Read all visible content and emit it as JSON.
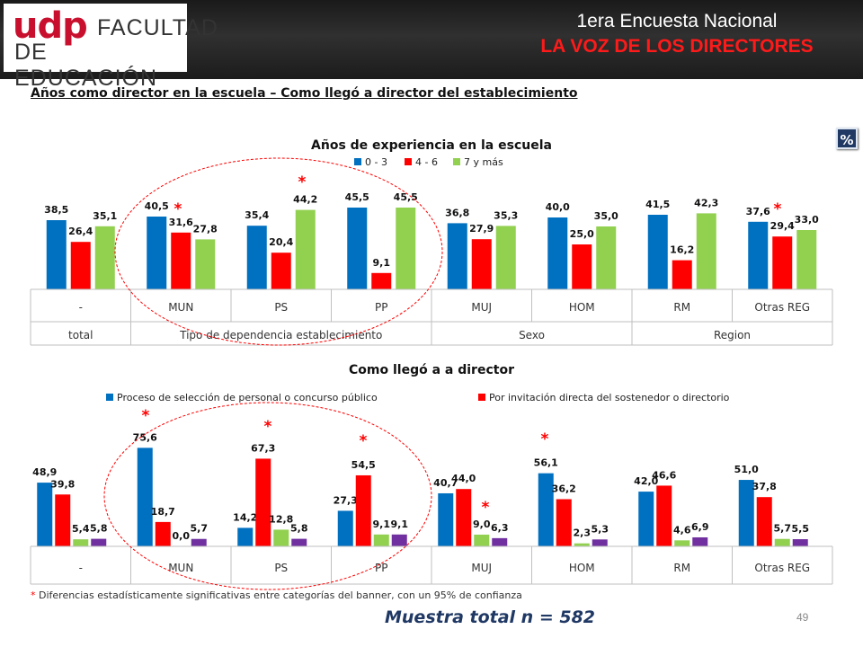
{
  "header": {
    "logo_udp": "udp",
    "logo_line1": "FACULTAD",
    "logo_line2": "DE EDUCACIÓN",
    "title": "1era Encuesta Nacional",
    "subtitle": "LA VOZ DE LOS DIRECTORES"
  },
  "slide_subtitle": "Años como director en la escuela – Como llegó a director del establecimiento",
  "percent_badge": "%",
  "colors": {
    "blue": "#0070c0",
    "red": "#ff0000",
    "green": "#92d050",
    "purple": "#7030a0",
    "star": "#ff0000",
    "ellipse": "#ff0000"
  },
  "chart_data": [
    {
      "type": "bar",
      "title": "Años de experiencia en la escuela",
      "categories": [
        "-",
        "MUN",
        "PS",
        "PP",
        "MUJ",
        "HOM",
        "RM",
        "Otras REG"
      ],
      "groups": [
        {
          "label": "total",
          "categories": [
            "-"
          ]
        },
        {
          "label": "Tipo de dependencia establecimiento",
          "categories": [
            "MUN",
            "PS",
            "PP"
          ]
        },
        {
          "label": "Sexo",
          "categories": [
            "MUJ",
            "HOM"
          ]
        },
        {
          "label": "Region",
          "categories": [
            "RM",
            "Otras REG"
          ]
        }
      ],
      "series": [
        {
          "name": "0 - 3",
          "color": "#0070c0",
          "values": [
            38.5,
            40.5,
            35.4,
            45.5,
            36.8,
            40.0,
            41.5,
            37.6
          ],
          "labels": [
            "38,5",
            "40,5",
            "35,4",
            "45,5",
            "36,8",
            "40,0",
            "41,5",
            "37,6"
          ]
        },
        {
          "name": "4 - 6",
          "color": "#ff0000",
          "values": [
            26.4,
            31.6,
            20.4,
            9.1,
            27.9,
            25.0,
            16.2,
            29.4
          ],
          "labels": [
            "26,4",
            "31,6",
            "20,4",
            "9,1",
            "27,9",
            "25,0",
            "16,2",
            "29,4"
          ]
        },
        {
          "name": "7 y más",
          "color": "#92d050",
          "values": [
            35.1,
            27.8,
            44.2,
            45.5,
            35.3,
            35.0,
            42.3,
            33.0
          ],
          "labels": [
            "35,1",
            "27,8",
            "44,2",
            "45,5",
            "35,3",
            "35,0",
            "42,3",
            "33,0"
          ]
        }
      ],
      "significance_markers": [
        {
          "category": "MUN",
          "text": "*"
        },
        {
          "category": "PS",
          "text": "*"
        },
        {
          "category": "Otras REG",
          "text": "*"
        }
      ],
      "legend": "top-center",
      "ylim": [
        0,
        50
      ]
    },
    {
      "type": "bar",
      "title": "Como llegó a a director",
      "categories": [
        "-",
        "MUN",
        "PS",
        "PP",
        "MUJ",
        "HOM",
        "RM",
        "Otras REG"
      ],
      "series": [
        {
          "name": "Proceso de selección de personal o concurso público",
          "color": "#0070c0",
          "values": [
            48.9,
            75.6,
            14.2,
            27.3,
            40.7,
            56.1,
            42.0,
            51.0
          ],
          "labels": [
            "48,9",
            "75,6",
            "14,2",
            "27,3",
            "40,7",
            "56,1",
            "42,0",
            "51,0"
          ]
        },
        {
          "name": "Por invitación directa del sostenedor o directorio",
          "color": "#ff0000",
          "values": [
            39.8,
            18.7,
            67.3,
            54.5,
            44.0,
            36.2,
            46.6,
            37.8
          ],
          "labels": [
            "39,8",
            "18,7",
            "67,3",
            "54,5",
            "44,0",
            "36,2",
            "46,6",
            "37,8"
          ]
        },
        {
          "name": "",
          "color": "#92d050",
          "values": [
            5.4,
            0.0,
            12.8,
            9.1,
            9.0,
            2.3,
            4.6,
            5.7
          ],
          "labels": [
            "5,4",
            "0,0",
            "12,8",
            "9,1",
            "9,0",
            "2,3",
            "4,6",
            "5,7"
          ]
        },
        {
          "name": "",
          "color": "#7030a0",
          "values": [
            5.8,
            5.7,
            5.8,
            9.1,
            6.3,
            5.3,
            6.9,
            5.5
          ],
          "labels": [
            "5,8",
            "5,7",
            "5,8",
            "9,1",
            "6,3",
            "5,3",
            "6,9",
            "5,5"
          ]
        }
      ],
      "significance_markers": [
        {
          "category": "MUN",
          "text": "*"
        },
        {
          "category": "PS",
          "text": "*"
        },
        {
          "category": "PP",
          "text": "*"
        },
        {
          "category": "MUJ",
          "text": "*"
        },
        {
          "category": "HOM",
          "text": "*"
        }
      ],
      "legend": "top-center",
      "ylim": [
        0,
        80
      ]
    }
  ],
  "footnote": {
    "star": "*",
    "text": " Diferencias estadísticamente significativas entre categorías del banner, con un 95% de confianza"
  },
  "sample_note": "Muestra total n = 582",
  "page_number": "49"
}
